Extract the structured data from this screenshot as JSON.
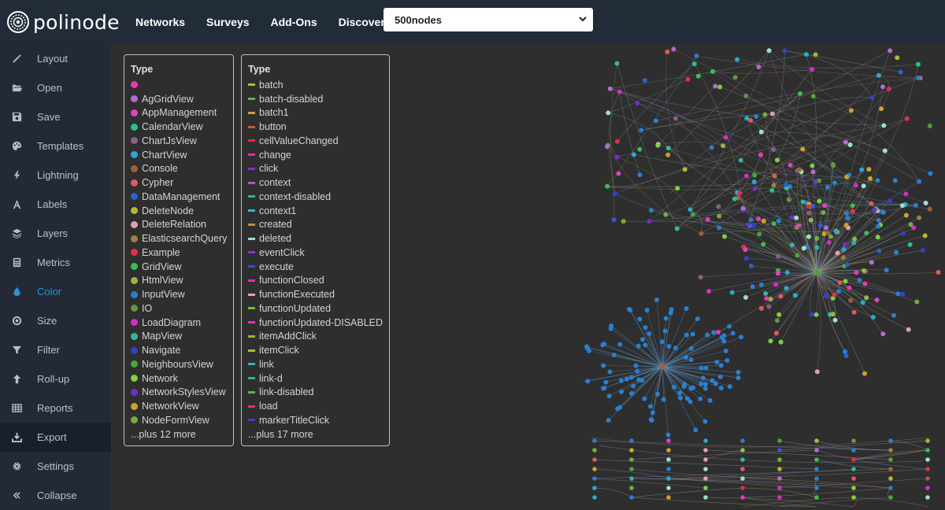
{
  "app": {
    "name": "polinode"
  },
  "nav": {
    "items": [
      "Networks",
      "Surveys",
      "Add-Ons",
      "Discover"
    ]
  },
  "network_select": {
    "value": "500nodes"
  },
  "sidebar": {
    "items": [
      {
        "label": "Layout",
        "icon": "magic-wand-icon"
      },
      {
        "label": "Open",
        "icon": "folder-open-icon"
      },
      {
        "label": "Save",
        "icon": "save-icon"
      },
      {
        "label": "Templates",
        "icon": "palette-icon"
      },
      {
        "label": "Lightning",
        "icon": "lightning-icon"
      },
      {
        "label": "Labels",
        "icon": "font-icon"
      },
      {
        "label": "Layers",
        "icon": "layers-icon"
      },
      {
        "label": "Metrics",
        "icon": "calculator-icon"
      },
      {
        "label": "Color",
        "icon": "droplet-icon"
      },
      {
        "label": "Size",
        "icon": "circle-dot-icon"
      },
      {
        "label": "Filter",
        "icon": "filter-icon"
      },
      {
        "label": "Roll-up",
        "icon": "arrow-up-icon"
      },
      {
        "label": "Reports",
        "icon": "table-icon"
      },
      {
        "label": "Export",
        "icon": "download-icon"
      },
      {
        "label": "Settings",
        "icon": "gear-icon"
      },
      {
        "label": "Collapse",
        "icon": "double-chevron-left-icon"
      }
    ],
    "selected": "Color",
    "highlighted": "Export",
    "selected_color": "#2b8fd6"
  },
  "node_legend": {
    "title": "Type",
    "items": [
      {
        "label": "",
        "color": "#e83ab5"
      },
      {
        "label": "AgGridView",
        "color": "#b56bd0"
      },
      {
        "label": "AppManagement",
        "color": "#d946c8"
      },
      {
        "label": "CalendarView",
        "color": "#2bbf8f"
      },
      {
        "label": "ChartJsView",
        "color": "#8a6080"
      },
      {
        "label": "ChartView",
        "color": "#29a8d6"
      },
      {
        "label": "Console",
        "color": "#a0603c"
      },
      {
        "label": "Cypher",
        "color": "#e05a5a"
      },
      {
        "label": "DataManagement",
        "color": "#2a60d6"
      },
      {
        "label": "DeleteNode",
        "color": "#b8b830"
      },
      {
        "label": "DeleteRelation",
        "color": "#e0a0b0"
      },
      {
        "label": "ElasticsearchQuery",
        "color": "#a08040"
      },
      {
        "label": "Example",
        "color": "#e0304a"
      },
      {
        "label": "GridView",
        "color": "#3ac050"
      },
      {
        "label": "HtmlView",
        "color": "#98b840"
      },
      {
        "label": "InputView",
        "color": "#2a80d0"
      },
      {
        "label": "IO",
        "color": "#5a9a40"
      },
      {
        "label": "LoadDiagram",
        "color": "#d030c8"
      },
      {
        "label": "MapView",
        "color": "#30b898"
      },
      {
        "label": "Navigate",
        "color": "#3040d0"
      },
      {
        "label": "NeighboursView",
        "color": "#48a838"
      },
      {
        "label": "Network",
        "color": "#80d040"
      },
      {
        "label": "NetworkStylesView",
        "color": "#7030c8"
      },
      {
        "label": "NetworkView",
        "color": "#d0a030"
      },
      {
        "label": "NodeFormView",
        "color": "#70b040"
      }
    ],
    "more": "...plus 12 more"
  },
  "edge_legend": {
    "title": "Type",
    "items": [
      {
        "label": "batch",
        "color": "#b8b830"
      },
      {
        "label": "batch-disabled",
        "color": "#48c040"
      },
      {
        "label": "batch1",
        "color": "#d0a040"
      },
      {
        "label": "button",
        "color": "#c06030"
      },
      {
        "label": "cellValueChanged",
        "color": "#e03040"
      },
      {
        "label": "change",
        "color": "#e030a0"
      },
      {
        "label": "click",
        "color": "#8030d0"
      },
      {
        "label": "context",
        "color": "#c050d0"
      },
      {
        "label": "context-disabled",
        "color": "#30b888"
      },
      {
        "label": "context1",
        "color": "#30b8c8"
      },
      {
        "label": "created",
        "color": "#b89040"
      },
      {
        "label": "deleted",
        "color": "#a0e0c8"
      },
      {
        "label": "eventClick",
        "color": "#9030d8"
      },
      {
        "label": "execute",
        "color": "#3050c8"
      },
      {
        "label": "functionClosed",
        "color": "#e030a8"
      },
      {
        "label": "functionExecuted",
        "color": "#e8a0b8"
      },
      {
        "label": "functionUpdated",
        "color": "#70c030"
      },
      {
        "label": "functionUpdated-DISABLED",
        "color": "#e030c8"
      },
      {
        "label": "itemAddClick",
        "color": "#98b830"
      },
      {
        "label": "itemClick",
        "color": "#a0c030"
      },
      {
        "label": "link",
        "color": "#30b8b0"
      },
      {
        "label": "link-d",
        "color": "#30b870"
      },
      {
        "label": "link-disabled",
        "color": "#48c048"
      },
      {
        "label": "load",
        "color": "#e03060"
      },
      {
        "label": "markerTitleClick",
        "color": "#6030c8"
      }
    ],
    "more": "...plus 17 more"
  }
}
